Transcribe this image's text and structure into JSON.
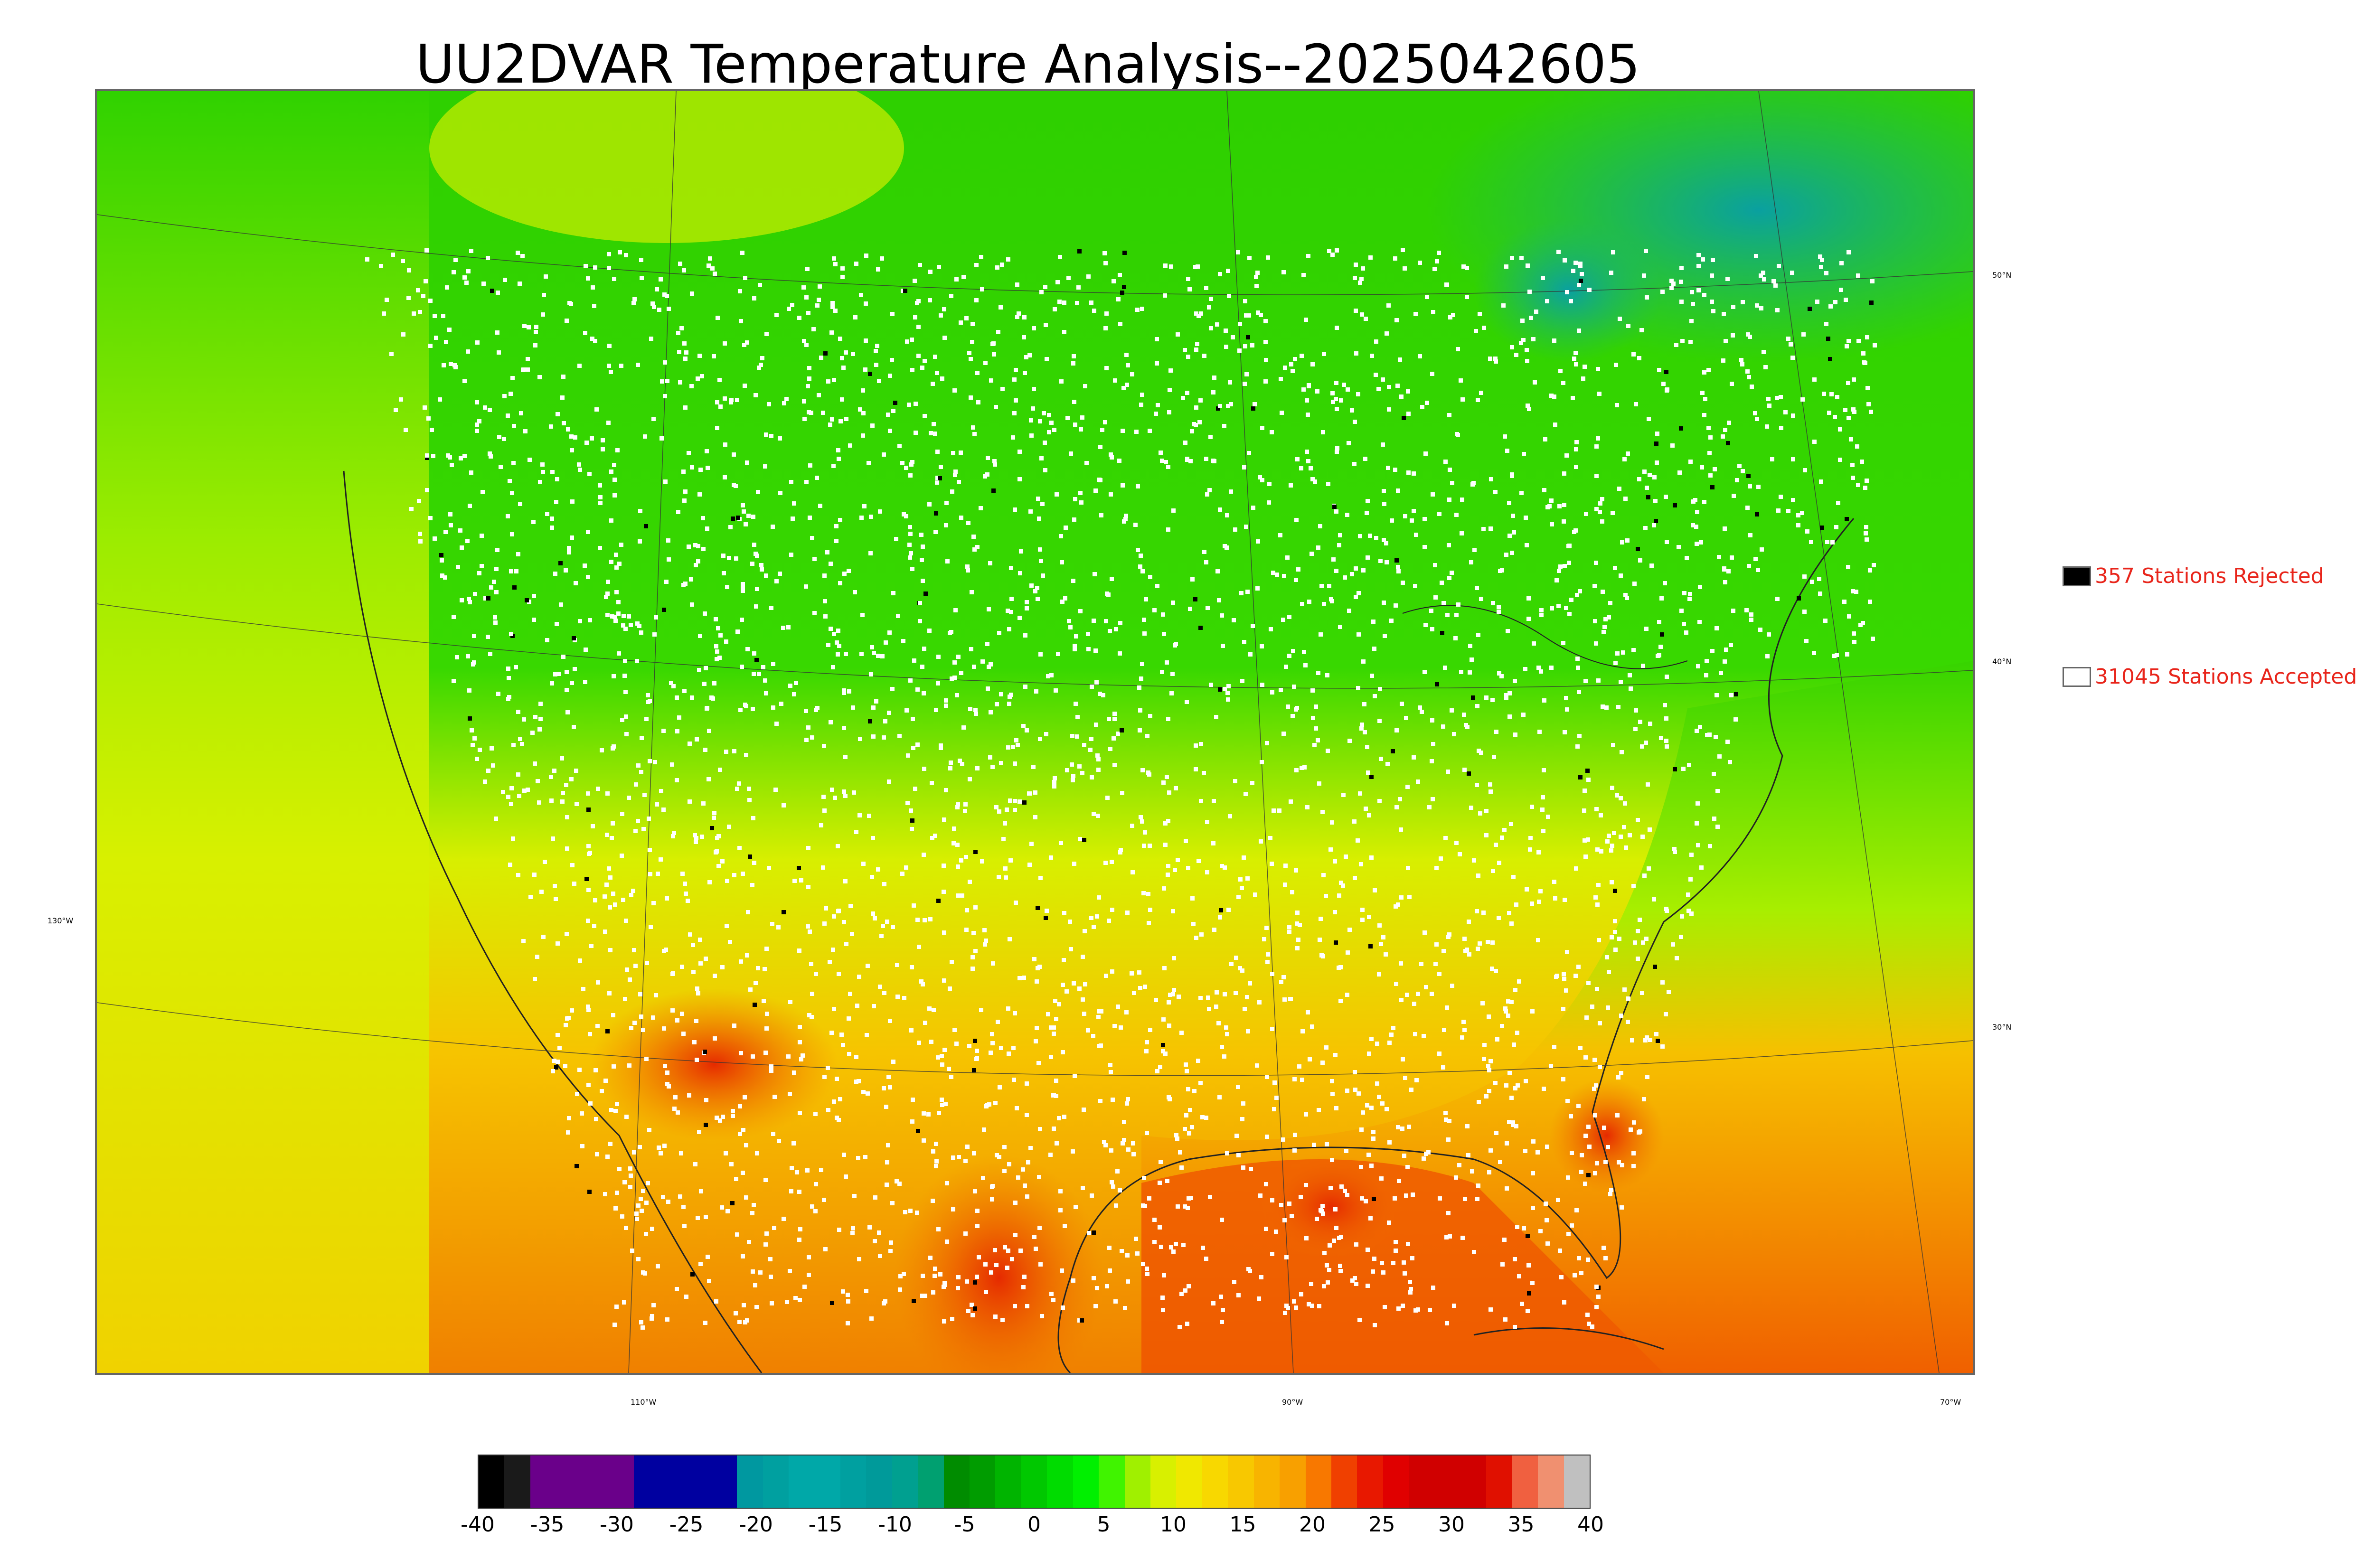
{
  "title": "UU2DVAR Temperature Analysis--2025042605",
  "legend": {
    "rejected": {
      "label": "357 Stations Rejected",
      "swatch": "#000000"
    },
    "accepted": {
      "label": "31045 Stations Accepted",
      "swatch": "#ffffff"
    }
  },
  "colors": {
    "land_cold": "#26c800",
    "land_north": "#34d400",
    "land_mid": "#c8f000",
    "land_warm": "#f5c800",
    "land_hot": "#f07000",
    "ocean_west": "#d4f200",
    "ocean_east_south": "#f48a00",
    "ocean_gulf": "#ef5a00",
    "arctic_teal": "#14b08a",
    "station_accepted": "#ffffff",
    "station_rejected": "#000000",
    "legend_text": "#e8251b"
  },
  "graticule": {
    "lat_labels": [
      "50°N",
      "40°N",
      "30°N"
    ],
    "lon_labels": [
      "130°W",
      "110°W",
      "90°W",
      "70°W"
    ]
  },
  "colorbar": {
    "ticks": [
      "-40",
      "-35",
      "-30",
      "-25",
      "-20",
      "-15",
      "-10",
      "-5",
      "0",
      "5",
      "10",
      "15",
      "20",
      "25",
      "30",
      "35",
      "40"
    ],
    "colors": [
      "#000000",
      "#1a1a1a",
      "#6a008a",
      "#6a008a",
      "#6a008a",
      "#6a008a",
      "#0000a0",
      "#0000a0",
      "#0000a0",
      "#0000a0",
      "#0098a0",
      "#00a0a0",
      "#00a8a8",
      "#00a8a8",
      "#00a0a0",
      "#009a9a",
      "#00a090",
      "#00a070",
      "#008c00",
      "#009c00",
      "#00b400",
      "#00c800",
      "#00dc00",
      "#00f000",
      "#40f400",
      "#a0f000",
      "#d8f000",
      "#f0e800",
      "#f8d800",
      "#f8c800",
      "#f8b400",
      "#f8a000",
      "#f87800",
      "#f04000",
      "#e81800",
      "#e00000",
      "#d00000",
      "#d00000",
      "#d00000",
      "#e01000",
      "#f06040",
      "#f09070",
      "#c0c0c0"
    ]
  }
}
